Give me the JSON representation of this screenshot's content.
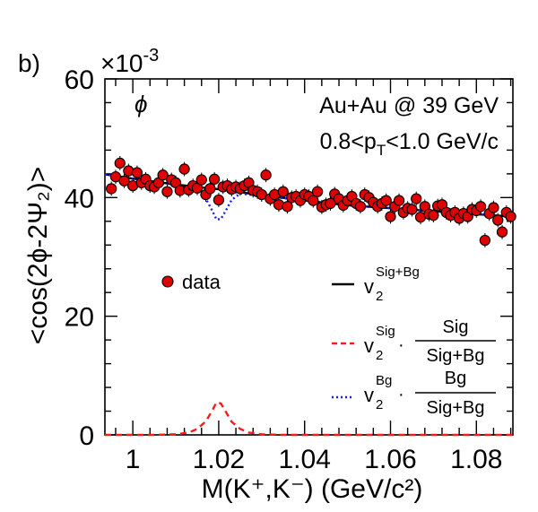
{
  "chart_data": {
    "type": "scatter",
    "panel_label": "b)",
    "exponent_label": "×10",
    "exponent_power": "-3",
    "annotations": {
      "particle": "ϕ",
      "system": "Au+Au @ 39 GeV",
      "pt_range": {
        "pre": "0.8<p",
        "sub": "T",
        "post": "<1.0 GeV/c"
      }
    },
    "xlabel": "M(K⁺,K⁻) (GeV/c²)",
    "ylabel": "<cos(2ϕ-2Ψ₂)>",
    "xlim": [
      0.9935,
      1.0885
    ],
    "ylim": [
      0,
      60
    ],
    "x_ticks": [
      {
        "value": 1.0,
        "label": "1"
      },
      {
        "value": 1.02,
        "label": "1.02"
      },
      {
        "value": 1.04,
        "label": "1.04"
      },
      {
        "value": 1.06,
        "label": "1.06"
      },
      {
        "value": 1.08,
        "label": "1.08"
      }
    ],
    "y_ticks": [
      {
        "value": 0,
        "label": "0"
      },
      {
        "value": 20,
        "label": "20"
      },
      {
        "value": 40,
        "label": "40"
      },
      {
        "value": 60,
        "label": "60"
      }
    ],
    "legend": {
      "data": "data",
      "total": {
        "symbol": "v",
        "sub": "2",
        "sup": "Sig+Bg"
      },
      "signal": {
        "symbol": "v",
        "sub": "2",
        "sup": "Sig",
        "num": "Sig",
        "den": "Sig+Bg"
      },
      "background": {
        "symbol": "v",
        "sub": "2",
        "sup": "Bg",
        "num": "Bg",
        "den": "Sig+Bg"
      }
    },
    "colors": {
      "data_fill": "#e00000",
      "total_line": "#000000",
      "signal_line": "#ff1a1a",
      "background_line": "#1a1aff"
    },
    "series": [
      {
        "kind": "points",
        "legend_key": "data",
        "x": [
          0.995,
          0.996,
          0.997,
          0.998,
          0.999,
          1.0,
          1.001,
          1.002,
          1.003,
          1.004,
          1.005,
          1.006,
          1.007,
          1.008,
          1.009,
          1.01,
          1.011,
          1.012,
          1.013,
          1.014,
          1.015,
          1.016,
          1.017,
          1.018,
          1.019,
          1.02,
          1.021,
          1.022,
          1.023,
          1.024,
          1.025,
          1.026,
          1.027,
          1.028,
          1.029,
          1.03,
          1.031,
          1.032,
          1.033,
          1.034,
          1.035,
          1.036,
          1.037,
          1.038,
          1.039,
          1.04,
          1.041,
          1.042,
          1.043,
          1.044,
          1.045,
          1.046,
          1.047,
          1.048,
          1.049,
          1.05,
          1.051,
          1.052,
          1.053,
          1.054,
          1.055,
          1.056,
          1.057,
          1.058,
          1.059,
          1.06,
          1.061,
          1.062,
          1.063,
          1.064,
          1.065,
          1.066,
          1.067,
          1.068,
          1.069,
          1.07,
          1.071,
          1.072,
          1.073,
          1.074,
          1.075,
          1.076,
          1.077,
          1.078,
          1.079,
          1.08,
          1.081,
          1.082,
          1.083,
          1.084,
          1.085,
          1.086,
          1.087,
          1.088
        ],
        "y": [
          41.5,
          43.5,
          45.8,
          42.8,
          44.5,
          42.0,
          44.2,
          42.5,
          43.1,
          42.0,
          41.8,
          42.5,
          43.8,
          41.0,
          43.0,
          42.5,
          41.2,
          44.8,
          41.3,
          42.0,
          41.6,
          43.0,
          40.5,
          41.5,
          43.1,
          39.6,
          41.8,
          42.0,
          41.4,
          41.8,
          41.5,
          42.0,
          42.5,
          41.2,
          41.0,
          40.5,
          43.8,
          39.8,
          40.5,
          38.8,
          41.0,
          38.5,
          40.0,
          40.2,
          39.5,
          40.5,
          40.2,
          39.5,
          41.0,
          38.4,
          38.8,
          39.0,
          40.6,
          39.8,
          38.7,
          39.5,
          40.2,
          39.0,
          38.5,
          40.5,
          40.0,
          39.2,
          38.5,
          39.0,
          39.5,
          36.8,
          38.5,
          39.5,
          37.5,
          38.2,
          38.0,
          39.8,
          36.7,
          38.5,
          37.2,
          37.0,
          38.6,
          38.8,
          37.5,
          37.0,
          37.5,
          36.5,
          37.3,
          36.8,
          38.0,
          37.8,
          38.5,
          32.8,
          37.3,
          38.3,
          36.2,
          34.2,
          37.5,
          36.8
        ],
        "err": 1.2
      },
      {
        "kind": "line",
        "legend_key": "total",
        "style": "solid",
        "x": [
          0.9935,
          1.0,
          1.01,
          1.014,
          1.017,
          1.019,
          1.02,
          1.021,
          1.023,
          1.026,
          1.03,
          1.04,
          1.05,
          1.06,
          1.07,
          1.08,
          1.0885
        ],
        "y": [
          43.9,
          43.2,
          42.2,
          41.9,
          41.6,
          41.5,
          41.4,
          41.3,
          41.1,
          40.8,
          40.4,
          39.5,
          38.7,
          38.2,
          37.7,
          37.2,
          36.8
        ]
      },
      {
        "kind": "line",
        "legend_key": "background",
        "style": "dotted",
        "x": [
          0.9935,
          1.0,
          1.005,
          1.01,
          1.013,
          1.015,
          1.017,
          1.0185,
          1.0195,
          1.0205,
          1.0215,
          1.023,
          1.025,
          1.027,
          1.03,
          1.035,
          1.04,
          1.05,
          1.06,
          1.07,
          1.08,
          1.0885
        ],
        "y": [
          43.9,
          43.2,
          42.6,
          42.1,
          41.6,
          41.0,
          39.8,
          37.8,
          36.3,
          36.4,
          37.6,
          39.6,
          40.7,
          40.5,
          40.3,
          39.9,
          39.5,
          38.7,
          38.2,
          37.7,
          37.2,
          36.8
        ]
      },
      {
        "kind": "line",
        "legend_key": "signal",
        "style": "dashed",
        "x": [
          0.9935,
          1.005,
          1.01,
          1.013,
          1.015,
          1.017,
          1.0185,
          1.0195,
          1.0205,
          1.0215,
          1.023,
          1.025,
          1.027,
          1.03,
          1.035,
          1.045,
          1.0885
        ],
        "y": [
          0.0,
          0.0,
          0.1,
          0.4,
          1.0,
          2.3,
          4.1,
          5.5,
          5.3,
          4.1,
          2.2,
          1.0,
          0.4,
          0.1,
          0.0,
          0.0,
          0.0
        ]
      }
    ]
  }
}
